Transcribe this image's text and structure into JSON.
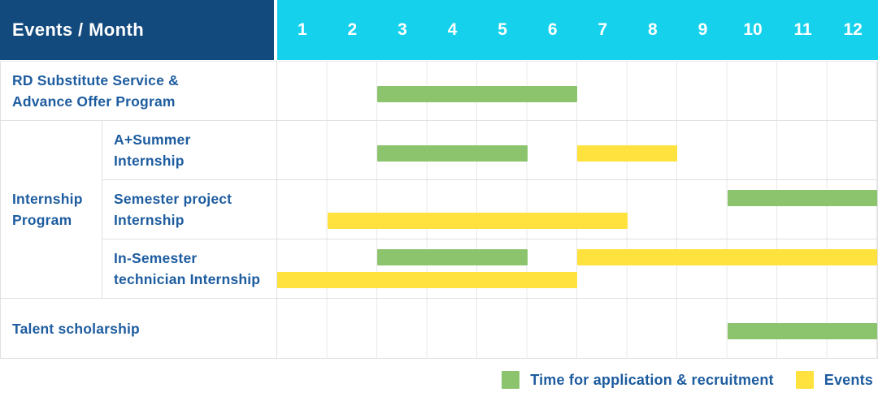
{
  "colors": {
    "navy": "#134a7e",
    "cyan": "#16d1ec",
    "green": "#8cc46e",
    "yellow": "#ffe23e",
    "blue_text": "#1d5c9f",
    "grid_line": "#e9e9e9",
    "row_border": "#e0e0e0"
  },
  "chart_data": {
    "type": "gantt",
    "title": "Events / Month",
    "xlabel": "Month",
    "x_range": [
      1,
      12
    ],
    "x_ticks": [
      "1",
      "2",
      "3",
      "4",
      "5",
      "6",
      "7",
      "8",
      "9",
      "10",
      "11",
      "12"
    ],
    "grid": true,
    "legend_position": "bottom-right",
    "legend": [
      {
        "key": "application",
        "label": "Time for application & recruitment",
        "color": "#8cc46e"
      },
      {
        "key": "event",
        "label": "Events",
        "color": "#ffe23e"
      }
    ],
    "group_label_lines": [
      "Internship",
      "Program"
    ],
    "tasks": [
      {
        "event": "RD Substitute Service & Advance Offer Program",
        "label_lines": [
          "RD Substitute Service &",
          "Advance Offer Program"
        ],
        "group": null,
        "bars": [
          {
            "type": "application",
            "start_month": 3,
            "end_month": 6,
            "lane": "single"
          }
        ]
      },
      {
        "event": "A+Summer Internship",
        "label_lines": [
          "A+Summer",
          "Internship"
        ],
        "group": "Internship Program",
        "bars": [
          {
            "type": "application",
            "start_month": 3,
            "end_month": 5,
            "lane": "single"
          },
          {
            "type": "event",
            "start_month": 7,
            "end_month": 8,
            "lane": "single"
          }
        ]
      },
      {
        "event": "Semester project Internship",
        "label_lines": [
          "Semester project",
          "Internship"
        ],
        "group": "Internship Program",
        "bars": [
          {
            "type": "application",
            "start_month": 10,
            "end_month": 12,
            "lane": "top"
          },
          {
            "type": "event",
            "start_month": 2,
            "end_month": 7,
            "lane": "bottom"
          }
        ]
      },
      {
        "event": "In-Semester technician Internship",
        "label_lines": [
          "In-Semester",
          "technician Internship"
        ],
        "group": "Internship Program",
        "bars": [
          {
            "type": "application",
            "start_month": 3,
            "end_month": 5,
            "lane": "top"
          },
          {
            "type": "event",
            "start_month": 7,
            "end_month": 12,
            "lane": "top"
          },
          {
            "type": "event",
            "start_month": 1,
            "end_month": 6,
            "lane": "bottom"
          }
        ]
      },
      {
        "event": "Talent scholarship",
        "label_lines": [
          "Talent scholarship"
        ],
        "group": null,
        "bars": [
          {
            "type": "application",
            "start_month": 10,
            "end_month": 12,
            "lane": "single"
          }
        ]
      }
    ]
  }
}
